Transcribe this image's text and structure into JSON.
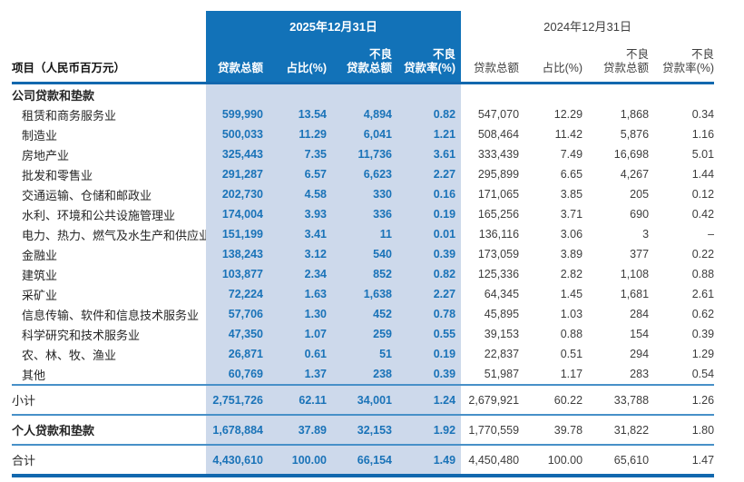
{
  "colors": {
    "band_blue": "#1272b8",
    "light_blue_column_bg": "#cdd9eb",
    "value_blue": "#1a73b8",
    "rule_dark_blue": "#1268ae",
    "rule_light_blue": "#4790c8",
    "text_dark": "#3d3d3d"
  },
  "table": {
    "project_label": "项目（人民币百万元）",
    "periods": [
      {
        "label": "2025年12月31日",
        "columns": [
          "贷款总额",
          "占比(%)",
          "不良\n贷款总额",
          "不良\n贷款率(%)"
        ]
      },
      {
        "label": "2024年12月31日",
        "columns": [
          "贷款总额",
          "占比(%)",
          "不良\n贷款总额",
          "不良\n贷款率(%)"
        ]
      }
    ],
    "rows": [
      {
        "label": "公司贷款和垫款",
        "type": "section",
        "v": [
          "",
          "",
          "",
          "",
          "",
          "",
          "",
          ""
        ]
      },
      {
        "label": "租赁和商务服务业",
        "type": "industry",
        "v": [
          "599,990",
          "13.54",
          "4,894",
          "0.82",
          "547,070",
          "12.29",
          "1,868",
          "0.34"
        ]
      },
      {
        "label": "制造业",
        "type": "industry",
        "v": [
          "500,033",
          "11.29",
          "6,041",
          "1.21",
          "508,464",
          "11.42",
          "5,876",
          "1.16"
        ]
      },
      {
        "label": "房地产业",
        "type": "industry",
        "v": [
          "325,443",
          "7.35",
          "11,736",
          "3.61",
          "333,439",
          "7.49",
          "16,698",
          "5.01"
        ]
      },
      {
        "label": "批发和零售业",
        "type": "industry",
        "v": [
          "291,287",
          "6.57",
          "6,623",
          "2.27",
          "295,899",
          "6.65",
          "4,267",
          "1.44"
        ]
      },
      {
        "label": "交通运输、仓储和邮政业",
        "type": "industry",
        "v": [
          "202,730",
          "4.58",
          "330",
          "0.16",
          "171,065",
          "3.85",
          "205",
          "0.12"
        ]
      },
      {
        "label": "水利、环境和公共设施管理业",
        "type": "industry",
        "v": [
          "174,004",
          "3.93",
          "336",
          "0.19",
          "165,256",
          "3.71",
          "690",
          "0.42"
        ]
      },
      {
        "label": "电力、热力、燃气及水生产和供应业",
        "type": "industry",
        "v": [
          "151,199",
          "3.41",
          "11",
          "0.01",
          "136,116",
          "3.06",
          "3",
          "–"
        ]
      },
      {
        "label": "金融业",
        "type": "industry",
        "v": [
          "138,243",
          "3.12",
          "540",
          "0.39",
          "173,059",
          "3.89",
          "377",
          "0.22"
        ]
      },
      {
        "label": "建筑业",
        "type": "industry",
        "v": [
          "103,877",
          "2.34",
          "852",
          "0.82",
          "125,336",
          "2.82",
          "1,108",
          "0.88"
        ]
      },
      {
        "label": "采矿业",
        "type": "industry",
        "v": [
          "72,224",
          "1.63",
          "1,638",
          "2.27",
          "64,345",
          "1.45",
          "1,681",
          "2.61"
        ]
      },
      {
        "label": "信息传输、软件和信息技术服务业",
        "type": "industry",
        "v": [
          "57,706",
          "1.30",
          "452",
          "0.78",
          "45,895",
          "1.03",
          "284",
          "0.62"
        ]
      },
      {
        "label": "科学研究和技术服务业",
        "type": "industry",
        "v": [
          "47,350",
          "1.07",
          "259",
          "0.55",
          "39,153",
          "0.88",
          "154",
          "0.39"
        ]
      },
      {
        "label": "农、林、牧、渔业",
        "type": "industry",
        "v": [
          "26,871",
          "0.61",
          "51",
          "0.19",
          "22,837",
          "0.51",
          "294",
          "1.29"
        ]
      },
      {
        "label": "其他",
        "type": "industry",
        "v": [
          "60,769",
          "1.37",
          "238",
          "0.39",
          "51,987",
          "1.17",
          "283",
          "0.54"
        ]
      },
      {
        "label": "小计",
        "type": "subtotal",
        "v": [
          "2,751,726",
          "62.11",
          "34,001",
          "1.24",
          "2,679,921",
          "60.22",
          "33,788",
          "1.26"
        ]
      },
      {
        "label": "个人贷款和垫款",
        "type": "personal",
        "v": [
          "1,678,884",
          "37.89",
          "32,153",
          "1.92",
          "1,770,559",
          "39.78",
          "31,822",
          "1.80"
        ]
      },
      {
        "label": "合计",
        "type": "total",
        "v": [
          "4,430,610",
          "100.00",
          "66,154",
          "1.49",
          "4,450,480",
          "100.00",
          "65,610",
          "1.47"
        ]
      }
    ]
  }
}
